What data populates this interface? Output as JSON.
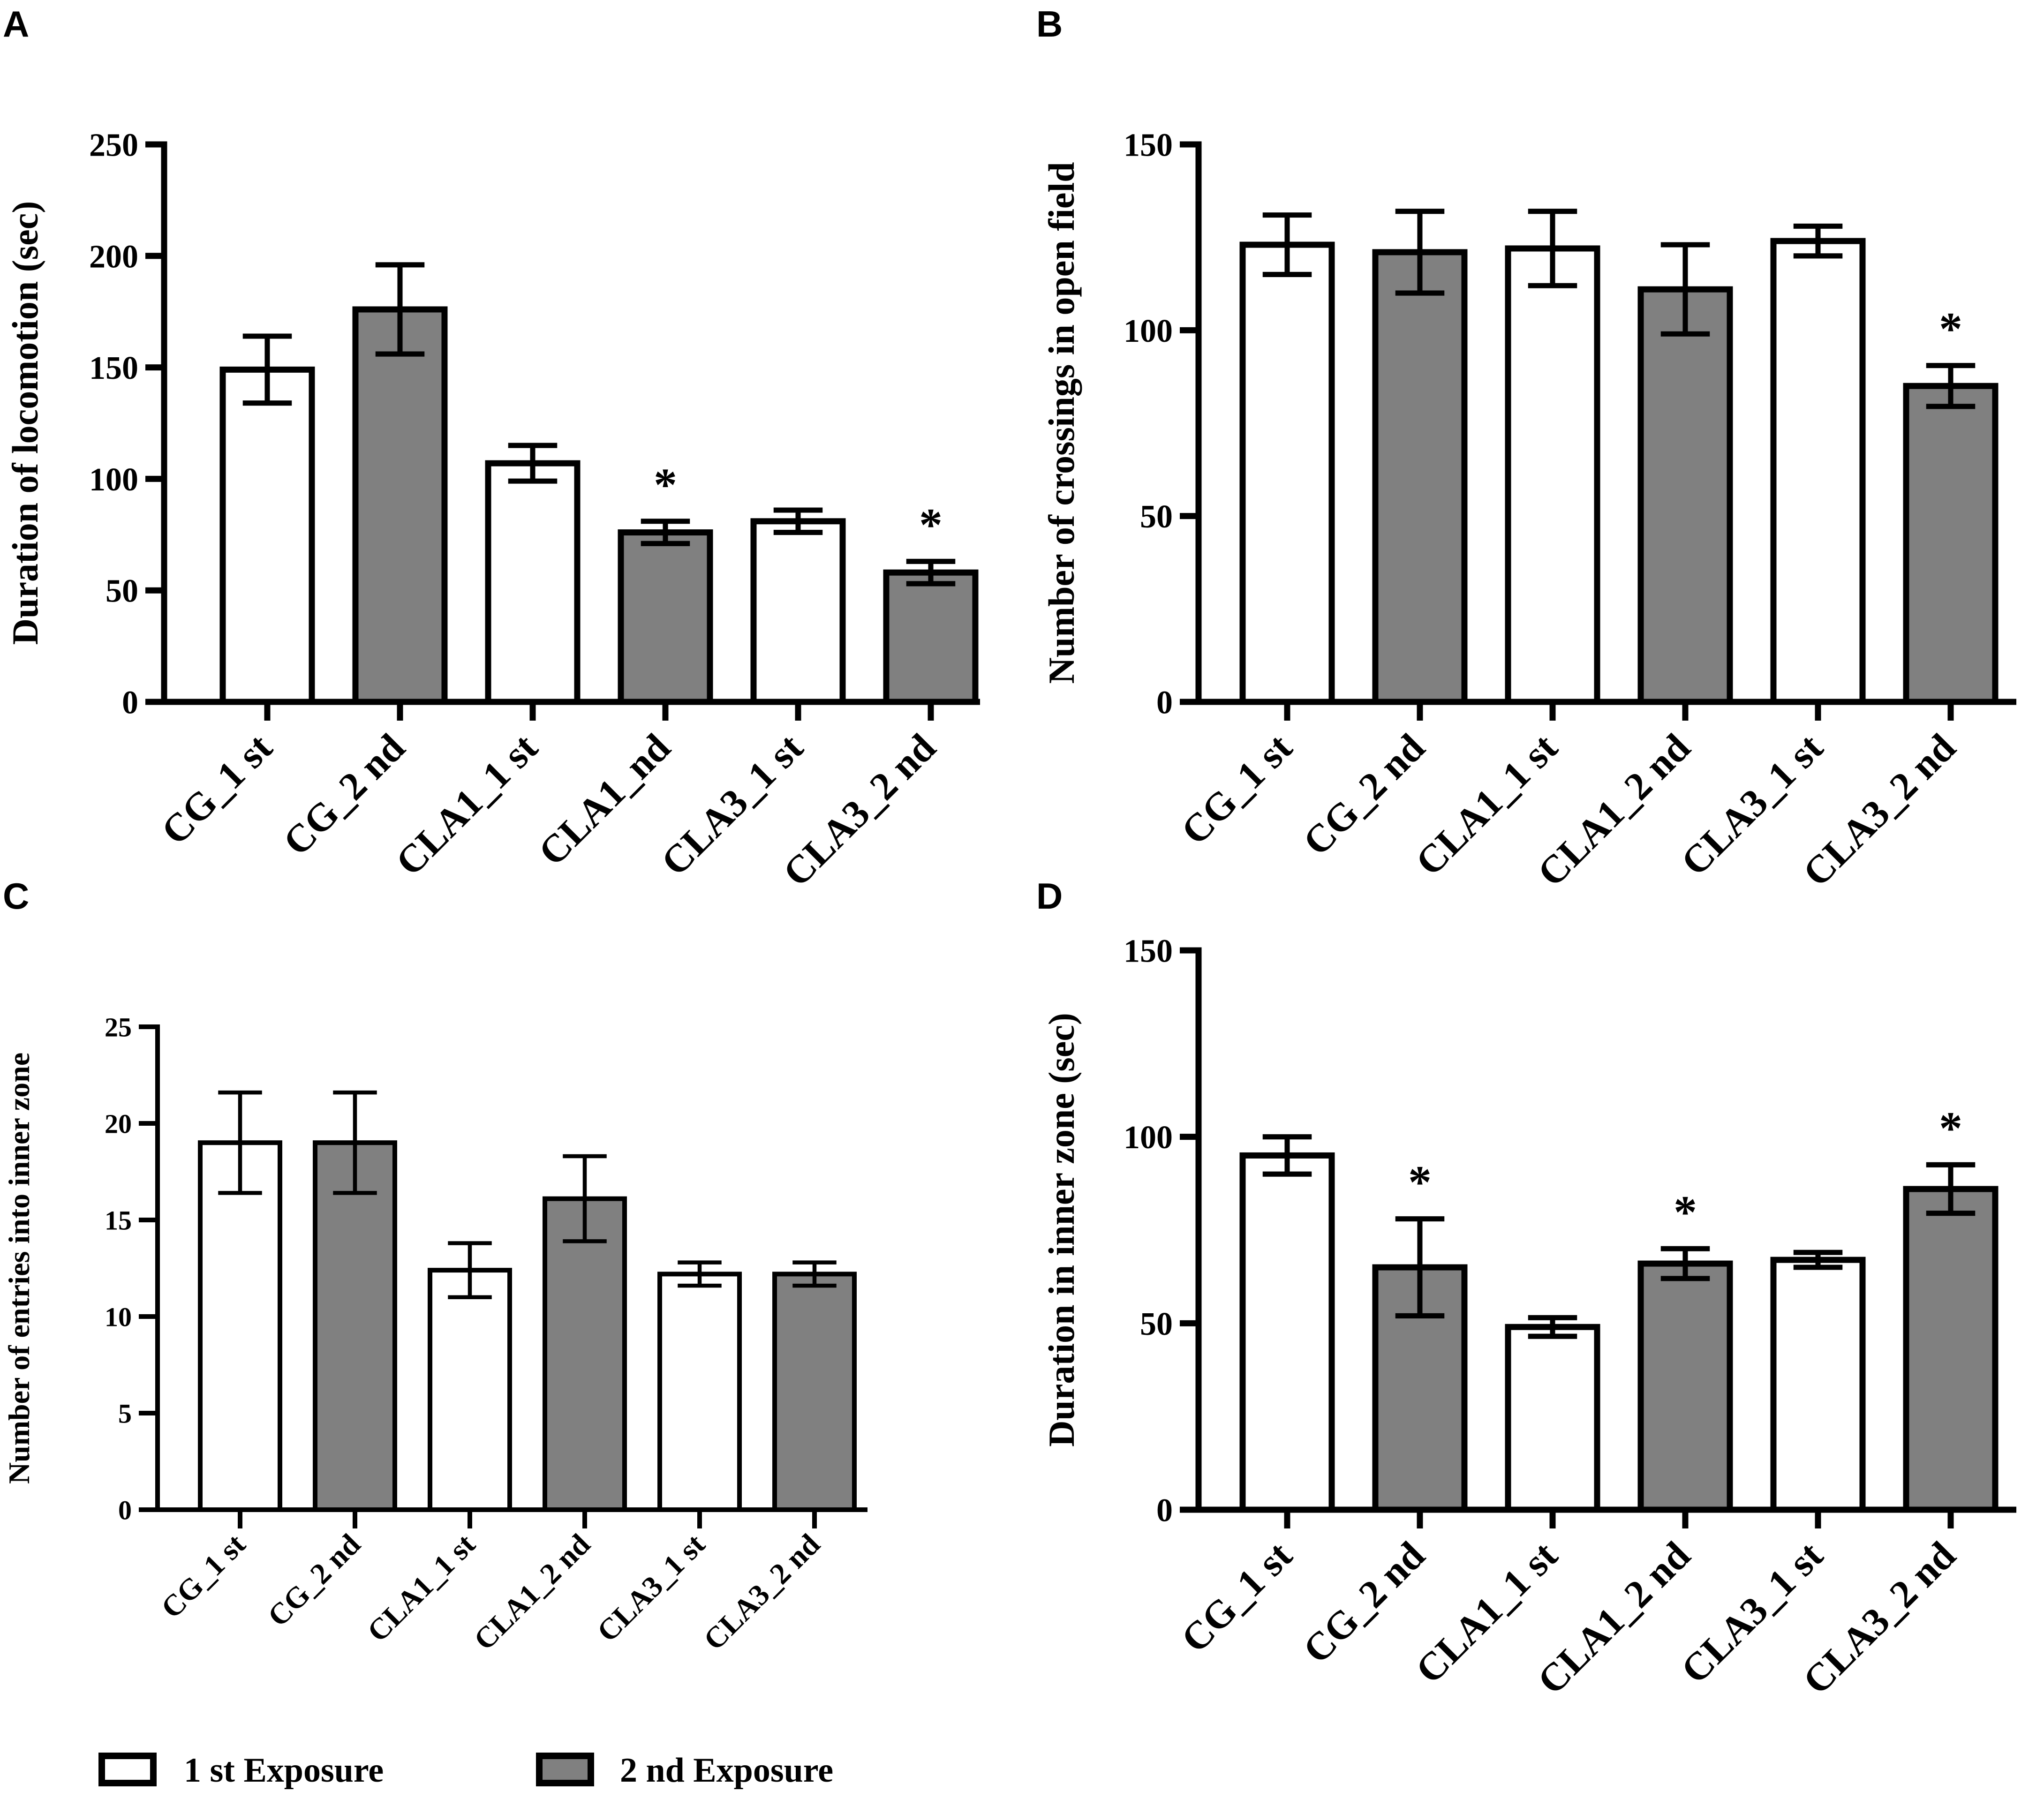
{
  "colors": {
    "first_exposure": "#ffffff",
    "second_exposure": "#808080",
    "stroke": "#000000"
  },
  "legend": {
    "first_label": "1 st Exposure",
    "second_label": "2 nd Exposure"
  },
  "chart_data": [
    {
      "panel": "A",
      "type": "bar",
      "ylabel": "Duration of locomotion (sec)",
      "ylim": [
        0,
        250
      ],
      "yticks": [
        0,
        50,
        100,
        150,
        200,
        250
      ],
      "categories": [
        "CG_1 st",
        "CG_2 nd",
        "CLA1_1 st",
        "CLA1_nd",
        "CLA3_1 st",
        "CLA3_2 nd"
      ],
      "exposure": [
        "1 st",
        "2 nd",
        "1 st",
        "2 nd",
        "1 st",
        "2 nd"
      ],
      "values": [
        149,
        176,
        107,
        76,
        81,
        58
      ],
      "error": [
        15,
        20,
        8,
        5,
        5,
        5
      ],
      "significance": [
        "",
        "",
        "",
        "*",
        "",
        "*"
      ]
    },
    {
      "panel": "B",
      "type": "bar",
      "ylabel": "Number of crossings in open field",
      "ylim": [
        0,
        150
      ],
      "yticks": [
        0,
        50,
        100,
        150
      ],
      "categories": [
        "CG_1 st",
        "CG_2 nd",
        "CLA1_1 st",
        "CLA1_2 nd",
        "CLA3_1 st",
        "CLA3_2 nd"
      ],
      "exposure": [
        "1 st",
        "2 nd",
        "1 st",
        "2 nd",
        "1 st",
        "2 nd"
      ],
      "values": [
        123,
        121,
        122,
        111,
        124,
        85
      ],
      "error": [
        8,
        11,
        10,
        12,
        4,
        5.5
      ],
      "significance": [
        "",
        "",
        "",
        "",
        "",
        "*"
      ]
    },
    {
      "panel": "C",
      "type": "bar",
      "ylabel": "Number of entries into inner zone",
      "ylim": [
        0,
        25
      ],
      "yticks": [
        0,
        5,
        10,
        15,
        20,
        25
      ],
      "categories": [
        "CG_1 st",
        "CG_2 nd",
        "CLA1_1 st",
        "CLA1_2 nd",
        "CLA3_1 st",
        "CLA3_2 nd"
      ],
      "exposure": [
        "1 st",
        "2 nd",
        "1 st",
        "2 nd",
        "1 st",
        "2 nd"
      ],
      "values": [
        19,
        19,
        12.4,
        16.1,
        12.2,
        12.2
      ],
      "error": [
        2.6,
        2.6,
        1.4,
        2.2,
        0.6,
        0.6
      ],
      "significance": [
        "",
        "",
        "",
        "",
        "",
        ""
      ]
    },
    {
      "panel": "D",
      "type": "bar",
      "ylabel": "Duration in inner zone (sec)",
      "ylim": [
        0,
        150
      ],
      "yticks": [
        0,
        50,
        100,
        150
      ],
      "categories": [
        "CG_1 st",
        "CG_2 nd",
        "CLA1_1 st",
        "CLA1_2 nd",
        "CLA3_1 st",
        "CLA3_2 nd"
      ],
      "exposure": [
        "1 st",
        "2 nd",
        "1 st",
        "2 nd",
        "1 st",
        "2 nd"
      ],
      "values": [
        95,
        65,
        49,
        66,
        67,
        86
      ],
      "error": [
        5,
        13,
        2.5,
        4,
        2,
        6.5
      ],
      "significance": [
        "",
        "*",
        "",
        "*",
        "",
        "*"
      ]
    }
  ]
}
